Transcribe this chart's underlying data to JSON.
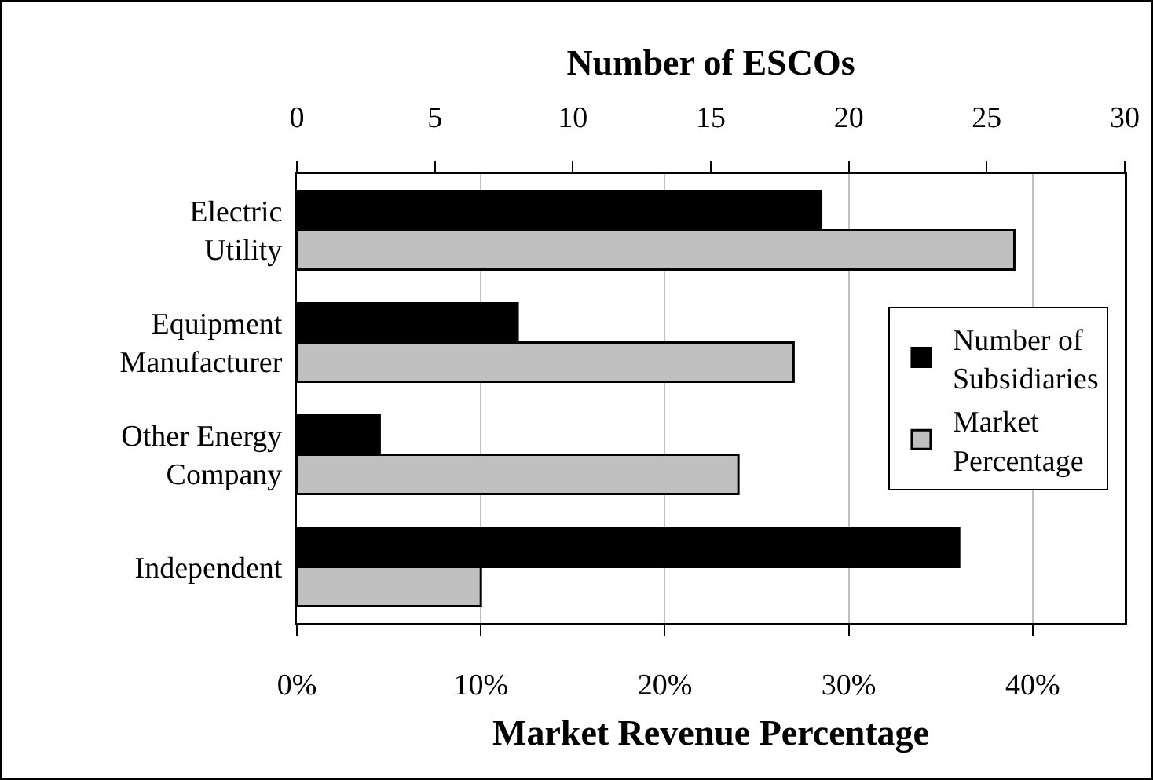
{
  "chart_data": {
    "type": "bar",
    "orientation": "horizontal",
    "categories": [
      "Electric Utility",
      "Equipment Manufacturer",
      "Other Energy Company",
      "Independent"
    ],
    "series": [
      {
        "name": "Number of Subsidiaries",
        "color": "#000000",
        "axis": "x2",
        "values": [
          19,
          8,
          3,
          24
        ]
      },
      {
        "name": "Market Percentage",
        "color": "#c0c0c0",
        "values": [
          39,
          27,
          24,
          10
        ]
      }
    ],
    "xlabel": "Market Revenue Percentage",
    "x2label": "Number of ESCOs",
    "xlim": [
      0,
      45
    ],
    "xticks": [
      {
        "value": 0,
        "label": "0%"
      },
      {
        "value": 10,
        "label": "10%"
      },
      {
        "value": 20,
        "label": "20%"
      },
      {
        "value": 30,
        "label": "30%"
      },
      {
        "value": 40,
        "label": "40%"
      }
    ],
    "x2lim": [
      0,
      30
    ],
    "x2ticks": [
      0,
      5,
      10,
      15,
      20,
      25,
      30
    ],
    "grid": "x",
    "legend": "right"
  }
}
